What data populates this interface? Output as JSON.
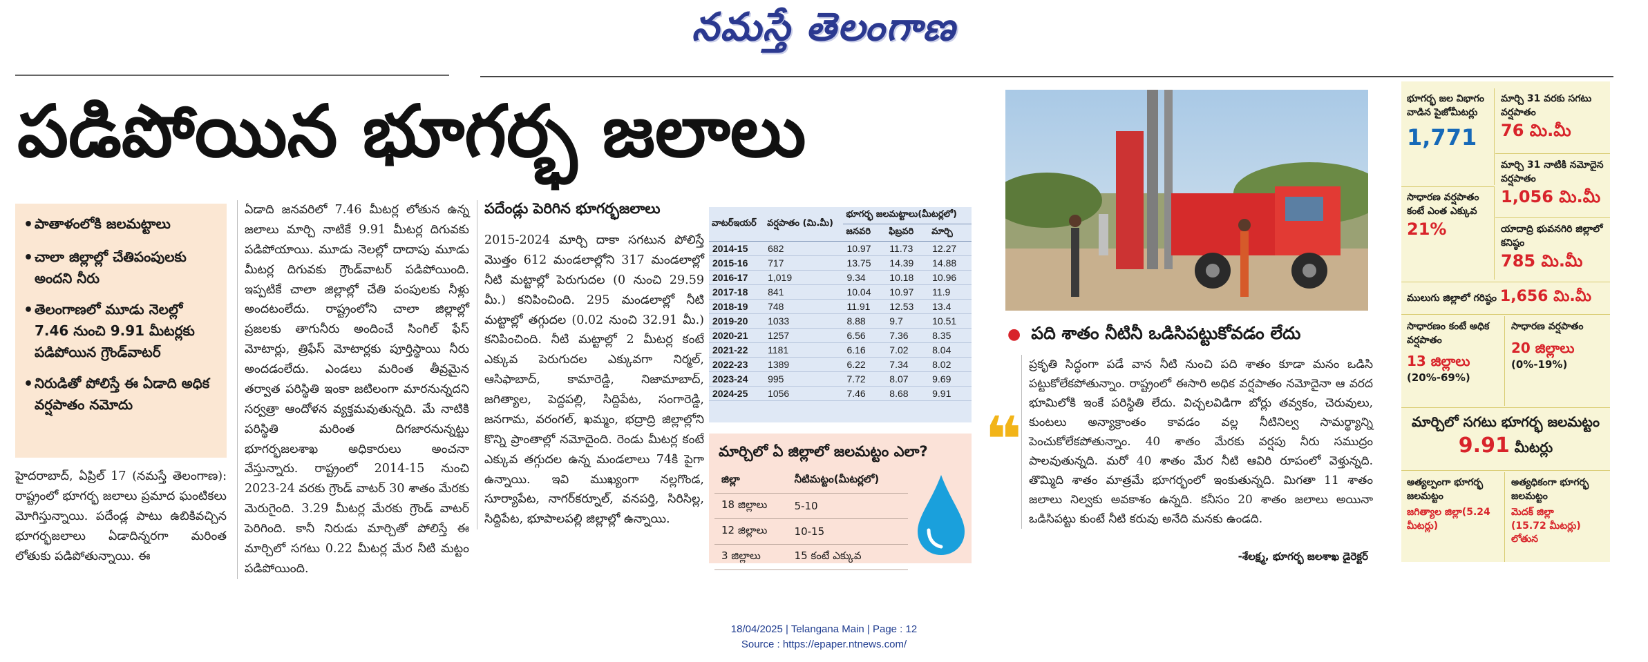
{
  "masthead": "నమస్తే తెలంగాణ",
  "headline": "పడిపోయిన భూగర్భ జలాలు",
  "bullets": [
    "పాతాళంలోకి జలమట్టాలు",
    "చాలా జిల్లాల్లో చేతిపంపులకు అందని నీరు",
    "తెలంగాణలో మూడు నెలల్లో 7.46 నుంచి 9.91 మీటర్లకు పడిపోయిన గ్రౌండ్‌వాటర్",
    "నిరుడితో పోలిస్తే ఈ ఏడాది అధిక వర్షపాతం నమోదు"
  ],
  "col1_para": "హైదరాబాద్, ఏప్రిల్ 17 (నమస్తే తెలంగాణ): రాష్ట్రంలో భూగర్భ జలాలు ప్రమాద ఘంటికలు మోగిస్తున్నాయి. పదేండ్ల పాటు ఉబికివచ్చిన భూగర్భజలాలు ఏడాదిన్నరగా మరింత లోతుకు పడిపోతున్నాయి. ఈ",
  "col2_para": "ఏడాది జనవరిలో 7.46 మీటర్ల లోతున ఉన్న జలాలు మార్చి నాటికే 9.91 మీటర్ల దిగువకు పడిపోయాయి. మూడు నెలల్లో దాదాపు మూడు మీటర్ల దిగువకు గ్రౌండ్‌వాటర్ పడిపోయింది. ఇప్పటికే చాలా జిల్లాల్లో చేతి పంపులకు నీళ్లు అందటంలేదు. రాష్ట్రంలోని చాలా జిల్లాల్లో ప్రజలకు తాగునీరు అందించే సింగిల్ ఫేస్ మోటార్లు, త్రిఫేస్ మోటార్లకు పూర్తిస్థాయి నీరు అందడంలేదు. ఎండలు మరింత తీవ్రమైన తర్వాత పరిస్థితి ఇంకా జటిలంగా మారనున్నదని సర్వత్రా ఆందోళన వ్యక్తమవుతున్నది. మే నాటికి పరిస్థితి మరింత దిగజారనున్నట్టు భూగర్భజలశాఖ అధికారులు అంచనా వేస్తున్నారు. రాష్ట్రంలో 2014-15 నుంచి 2023-24 వరకు గ్రౌండ్ వాటర్ 30 శాతం మేరకు మెరుగైంది. 3.29 మీటర్ల మేరకు గ్రౌండ్ వాటర్ పెరిగింది. కానీ నిరుడు మార్చితో పోలిస్తే ఈ మార్చిలో సగటు 0.22 మీటర్ల మేర నీటి మట్టం పడిపోయింది.",
  "col3_subhead": "పదేండ్లు పెరిగిన భూగర్భజలాలు",
  "col3_para": "2015-2024 మార్చి దాకా సగటున పోలిస్తే మొత్తం 612 మండలాల్లోని 317 మండలాల్లో నీటి మట్టాల్లో పెరుగుదల (0 నుంచి 29.59 మీ.) కనిపించింది. 295 మండలాల్లో నీటి మట్టాల్లో తగ్గుదల (0.02 నుంచి 32.91 మీ.) కనిపించింది. నీటి మట్టాల్లో 2 మీటర్ల కంటే ఎక్కువ పెరుగుదల ఎక్కువగా నిర్మల్, ఆసిఫాబాద్, కామారెడ్డి, నిజామాబాద్, జగిత్యాల, పెద్దపల్లి, సిద్దిపేట, సంగారెడ్డి, జనగామ, వరంగల్, ఖమ్మం, భద్రాద్రి జిల్లాల్లోని కొన్ని ప్రాంతాల్లో నమోదైంది. రెండు మీటర్ల కంటే ఎక్కువ తగ్గుదల ఉన్న మండలాలు 74కి పైగా ఉన్నాయి. ఇవి ముఖ్యంగా నల్లగొండ, సూర్యాపేట, నాగర్‌కర్నూల్, వనపర్తి, సిరిసిల్ల, సిద్దిపేట, భూపాలపల్లి జిల్లాల్లో ఉన్నాయి.",
  "table": {
    "headers": [
      "వాటర్‌ఇయర్",
      "వర్షపాతం (మి.మీ)",
      "భూగర్భ జలమట్టాలు(మీటర్లలో)"
    ],
    "subheaders": [
      "జనవరి",
      "ఫిబ్రవరి",
      "మార్చి"
    ],
    "rows": [
      [
        "2014-15",
        "682",
        "10.97",
        "11.73",
        "12.27"
      ],
      [
        "2015-16",
        "717",
        "13.75",
        "14.39",
        "14.88"
      ],
      [
        "2016-17",
        "1,019",
        "9.34",
        "10.18",
        "10.96"
      ],
      [
        "2017-18",
        "841",
        "10.04",
        "10.97",
        "11.9"
      ],
      [
        "2018-19",
        "748",
        "11.91",
        "12.53",
        "13.4"
      ],
      [
        "2019-20",
        "1033",
        "8.88",
        "9.7",
        "10.51"
      ],
      [
        "2020-21",
        "1257",
        "6.56",
        "7.36",
        "8.35"
      ],
      [
        "2021-22",
        "1181",
        "6.16",
        "7.02",
        "8.04"
      ],
      [
        "2022-23",
        "1389",
        "6.22",
        "7.34",
        "8.02"
      ],
      [
        "2023-24",
        "995",
        "7.72",
        "8.07",
        "9.69"
      ],
      [
        "2024-25",
        "1056",
        "7.46",
        "8.68",
        "9.91"
      ]
    ]
  },
  "march_box": {
    "title": "మార్చిలో ఏ జిల్లాలో జలమట్టం ఎలా?",
    "headers": [
      "జిల్లా",
      "నీటిమట్టం(మీటర్లలో)"
    ],
    "rows": [
      [
        "18 జిల్లాలు",
        "5-10"
      ],
      [
        "12 జిల్లాలు",
        "10-15"
      ],
      [
        "3 జిల్లాలు",
        "15 కంటే ఎక్కువ"
      ]
    ]
  },
  "quote": {
    "heading": "పది శాతం నీటినీ ఒడిసిపట్టుకోవడం లేదు",
    "text": "ప్రకృతి సిద్ధంగా పడే వాన నీటి నుంచి పది శాతం కూడా మనం ఒడిసి పట్టుకోలేకపోతున్నాం. రాష్ట్రంలో ఈసారి అధిక వర్షపాతం నమోదైనా ఆ వరద భూమిలోకి ఇంకే పరిస్థితి లేదు. విచ్చలవిడిగా బోర్లు తవ్వకం, చెరువులు, కుంటలు అన్యాక్రాంతం కావడం వల్ల నీటినిల్వ సామర్థ్యాన్ని పెంచుకోలేకపోతున్నాం. 40 శాతం మేరకు వర్షపు నీరు సముద్రం పాలవుతున్నది. మరో 40 శాతం మేర నీటి ఆవిరి రూపంలో వెళ్తున్నది. తొమ్మిది శాతం మాత్రమే భూగర్భంలో ఇంకుతున్నది. మిగతా 11 శాతం జలాలు నిల్వకు అవకాశం ఉన్నది. కనీసం 20 శాతం జలాలు అయినా ఒడిసిపట్టు కుంటే నీటి కరువు అనేది మనకు ఉండది.",
    "attribution": "-శేలక్ష్మ, భూగర్భ జలశాఖ డైరెక్టర్"
  },
  "sidebar": {
    "c1_label": "భూగర్భ జల విభాగం వాడిన పైజోమీటర్లు",
    "c1_value": "1,771",
    "c2_label": "మార్చి 31 వరకు సగటు వర్షపాతం",
    "c2_value": "76 మి.మీ",
    "c3_label": "మార్చి 31 నాటికి నమోదైన వర్షపాతం",
    "c3_value": "1,056 మి.మీ",
    "c4_label": "సాధారణ వర్షపాతం కంటే ఎంత ఎక్కువ",
    "c4_value": "21%",
    "c5_label": "యాదాద్రి భువనగిరి జిల్లాలో కనిష్ఠం",
    "c5_value": "785 మి.మీ",
    "c6_label": "ములుగు జిల్లాలో గరిష్ఠం",
    "c6_value": "1,656 మి.మీ",
    "c7_label": "సాధారణం కంటే అధిక వర్షపాతం",
    "c7_value": "13 జిల్లాలు",
    "c7_sub": "(20%-69%)",
    "c8_label": "సాధారణ వర్షపాతం",
    "c8_value": "20 జిల్లాలు",
    "c8_sub": "(0%-19%)",
    "c9_label": "మార్చిలో సగటు భూగర్భ జలమట్టం",
    "c9_value": "9.91",
    "c9_unit": "మీటర్లు",
    "c10_label": "అత్యల్పంగా భూగర్భ జలమట్టం",
    "c10_value": "జగిత్యాల జిల్లా(5.24 మీటర్లు)",
    "c11_label": "అత్యధికంగా భూగర్భ జలమట్టం",
    "c11_value": "మెదక్ జిల్లా",
    "c11_sub": "(15.72 మీటర్లు) లోతున"
  },
  "footer": {
    "line1": "18/04/2025 | Telangana Main | Page : 12",
    "line2": "Source : https://epaper.ntnews.com/"
  },
  "colors": {
    "masthead": "#2b3990",
    "bullet_bg": "#fbe7d3",
    "table_bg": "#dfe8f5",
    "march_bg": "#fbe2d8",
    "sidebar_bg": "#f8f5d7",
    "accent_blue": "#1669b8",
    "accent_red": "#d8232a",
    "quote_mark": "#f2b418"
  }
}
